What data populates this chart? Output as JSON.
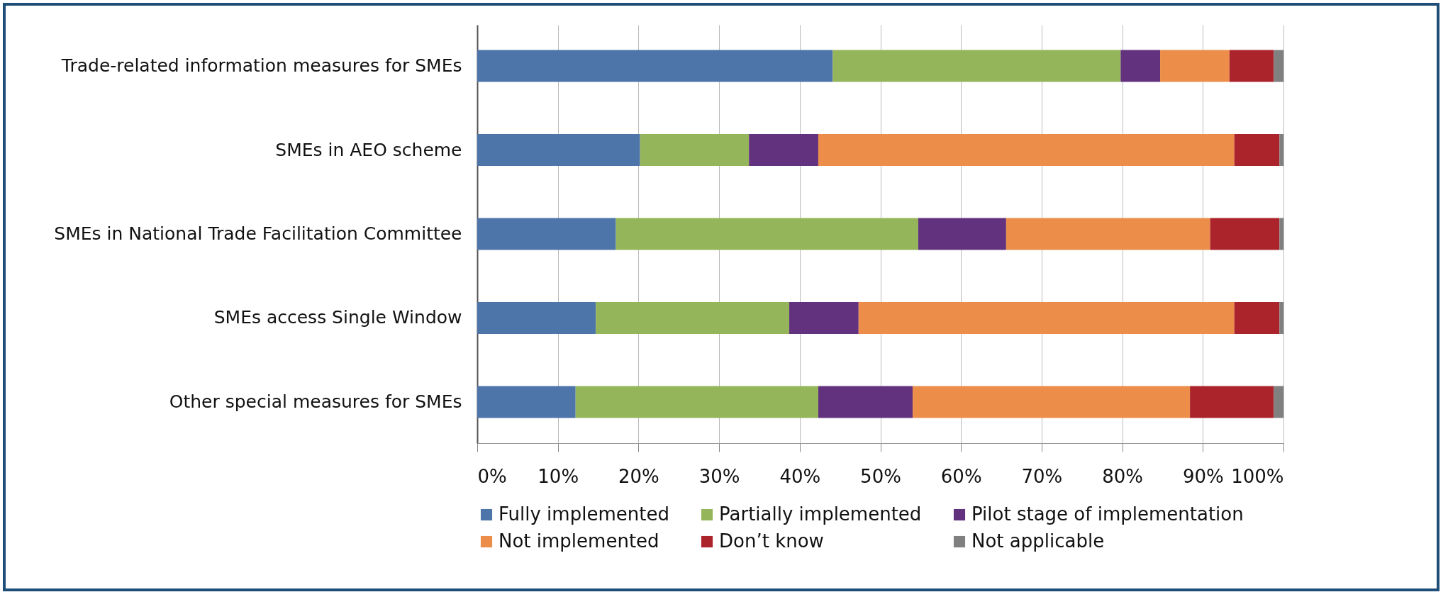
{
  "chart_data": {
    "type": "bar",
    "orientation": "horizontal",
    "stacked": true,
    "categories": [
      "Trade-related information measures for SMEs",
      "SMEs in AEO scheme",
      "SMEs in National Trade Facilitation Committee",
      "SMEs access Single Window",
      "Other special measures for SMEs"
    ],
    "series": [
      {
        "name": "Fully implemented",
        "color": "#4e75aa",
        "values": [
          44.1,
          20.2,
          17.2,
          14.7,
          12.2
        ]
      },
      {
        "name": "Partially implemented",
        "color": "#95b55a",
        "values": [
          35.7,
          13.5,
          37.5,
          24.0,
          30.1
        ]
      },
      {
        "name": "Pilot stage of implementation",
        "color": "#63327f",
        "values": [
          4.9,
          8.6,
          10.9,
          8.6,
          11.7
        ]
      },
      {
        "name": "Not implemented",
        "color": "#ec8e4a",
        "values": [
          8.6,
          51.6,
          25.3,
          46.6,
          34.4
        ]
      },
      {
        "name": "Don’t know",
        "color": "#ab232b",
        "values": [
          5.5,
          5.6,
          8.6,
          5.6,
          10.4
        ]
      },
      {
        "name": "Not applicable",
        "color": "#808080",
        "values": [
          1.2,
          0.5,
          0.5,
          0.5,
          1.2
        ]
      }
    ],
    "xlim": [
      0,
      100
    ],
    "xticks": [
      {
        "value": 0,
        "label": "0%"
      },
      {
        "value": 10,
        "label": "10%"
      },
      {
        "value": 20,
        "label": "20%"
      },
      {
        "value": 30,
        "label": "30%"
      },
      {
        "value": 40,
        "label": "40%"
      },
      {
        "value": 50,
        "label": "50%"
      },
      {
        "value": 60,
        "label": "60%"
      },
      {
        "value": 70,
        "label": "70%"
      },
      {
        "value": 80,
        "label": "80%"
      },
      {
        "value": 90,
        "label": "90%"
      },
      {
        "value": 100,
        "label": "100%"
      }
    ],
    "grid": "x",
    "legend": "bottom"
  }
}
